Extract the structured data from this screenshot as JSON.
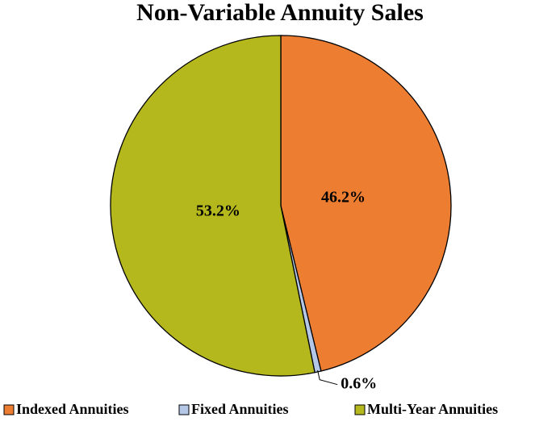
{
  "chart_data": {
    "type": "pie",
    "title": "Non-Variable Annuity Sales",
    "categories": [
      "Indexed Annuities",
      "Fixed Annuities",
      "Multi-Year Annuities"
    ],
    "values": [
      46.2,
      0.6,
      53.2
    ],
    "value_labels": [
      "46.2%",
      "0.6%",
      "53.2%"
    ],
    "colors": [
      "#ED7D31",
      "#B4C7E7",
      "#B5B81D"
    ],
    "legend": "bottom"
  }
}
